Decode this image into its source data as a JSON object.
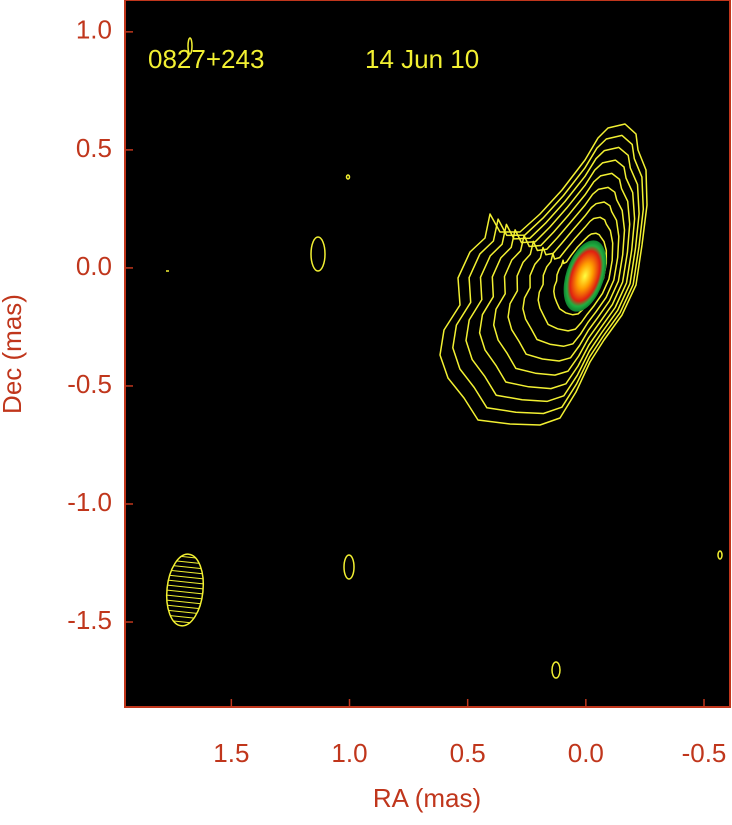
{
  "chart_data": {
    "type": "contour",
    "annotations": [
      "0827+243",
      "14 Jun 10"
    ],
    "xlabel": "RA (mas)",
    "ylabel": "Dec (mas)",
    "xlim": [
      1.95,
      -0.61
    ],
    "ylim": [
      -1.86,
      1.135
    ],
    "xticks": [
      1.5,
      {
        "value": 1,
        "label": "1.0"
      },
      0.5,
      {
        "value": 0,
        "label": "0.0"
      },
      -0.5
    ],
    "yticks": [
      {
        "value": 1,
        "label": "1.0"
      },
      0.5,
      {
        "value": 0,
        "label": "0.0"
      },
      -0.5,
      {
        "value": -1,
        "label": "-1.0"
      },
      -1.5
    ],
    "axis_color": "#c0361c",
    "contour_color": "#f2f032"
  }
}
